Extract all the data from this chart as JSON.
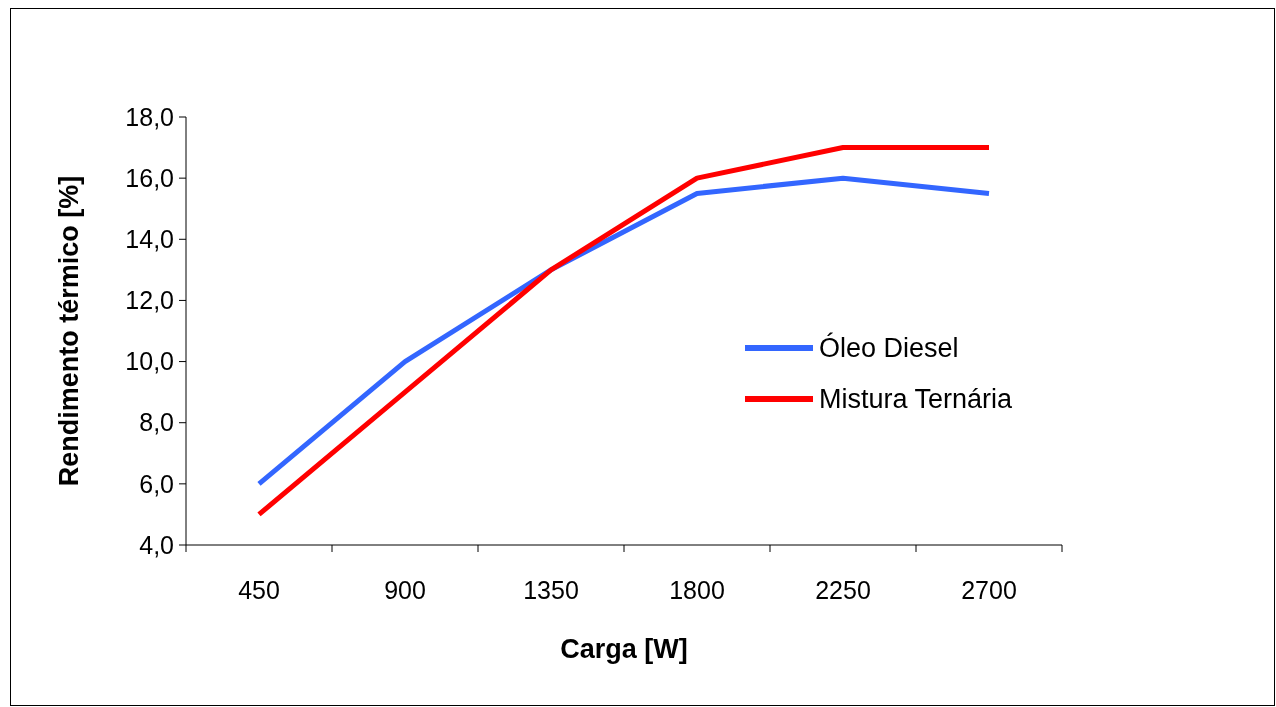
{
  "chart_data": {
    "type": "line",
    "xlabel": "Carga [W]",
    "ylabel": "Rendimento térmico [%]",
    "categories": [
      "450",
      "900",
      "1350",
      "1800",
      "2250",
      "2700"
    ],
    "series": [
      {
        "name": "Óleo Diesel",
        "color": "#3366ff",
        "values": [
          6,
          10,
          13,
          15.5,
          16,
          15.5
        ]
      },
      {
        "name": "Mistura Ternária",
        "color": "#ff0000",
        "values": [
          5,
          9,
          13,
          16,
          17,
          17
        ]
      }
    ],
    "ylim": [
      4,
      18
    ],
    "yticks": [
      {
        "value": 4,
        "label": "4,0"
      },
      {
        "value": 6,
        "label": "6,0"
      },
      {
        "value": 8,
        "label": "8,0"
      },
      {
        "value": 10,
        "label": "10,0"
      },
      {
        "value": 12,
        "label": "12,0"
      },
      {
        "value": 14,
        "label": "14,0"
      },
      {
        "value": 16,
        "label": "16,0"
      },
      {
        "value": 18,
        "label": "18,0"
      }
    ],
    "grid": false,
    "legend": "right",
    "marker": "none",
    "line_style": "solid"
  }
}
